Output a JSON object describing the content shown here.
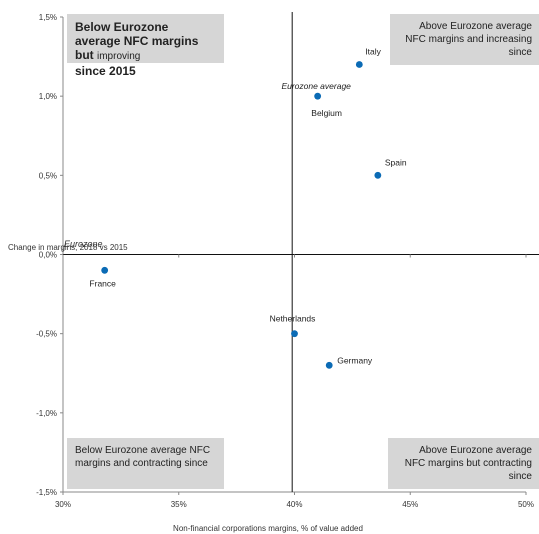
{
  "chart_data": {
    "type": "scatter",
    "xlabel": "Non-financial corporations margins, % of value added",
    "ylabel": "Change in margins, 2018 vs 2015",
    "xlim": [
      30,
      50
    ],
    "ylim": [
      -1.5,
      1.5
    ],
    "x_ticks": [
      "30%",
      "35%",
      "40%",
      "45%",
      "50%"
    ],
    "y_ticks": [
      "1,5%",
      "1,0%",
      "0,5%",
      "0,0%",
      "-0,5%",
      "-1,0%",
      "-1,5%"
    ],
    "reference_lines": {
      "x": 39.9,
      "y": 0.0,
      "x_label": "Eurozone average",
      "y_label": "Eurozone"
    },
    "points": [
      {
        "label": "Italy",
        "x": 42.8,
        "y": 1.2
      },
      {
        "label": "Belgium",
        "x": 41.0,
        "y": 1.0
      },
      {
        "label": "Spain",
        "x": 43.6,
        "y": 0.5
      },
      {
        "label": "France",
        "x": 31.8,
        "y": -0.1
      },
      {
        "label": "Netherlands",
        "x": 40.0,
        "y": -0.5
      },
      {
        "label": "Germany",
        "x": 41.5,
        "y": -0.7
      }
    ],
    "point_color": "#0b6bb5",
    "grid": false
  },
  "quadrants": {
    "top_left_bold": "Below Eurozone average NFC margins but",
    "top_left_normal": "improving",
    "top_left_bold2": "since 2015",
    "top_right": "Above Eurozone average NFC margins and increasing since",
    "bottom_left": "Below Eurozone average NFC margins and contracting since",
    "bottom_right": "Above Eurozone average NFC margins but contracting since"
  }
}
